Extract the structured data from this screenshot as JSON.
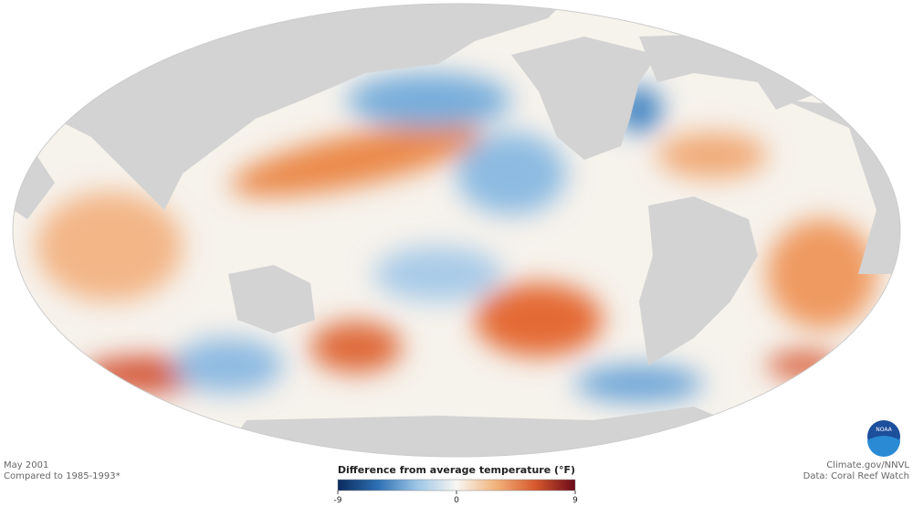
{
  "caption": {
    "date": "May 2001",
    "baseline": "Compared to 1985-1993*"
  },
  "credits": {
    "source": "Climate.gov/NNVL",
    "data": "Data: Coral Reef Watch",
    "logo": "NOAA"
  },
  "colorbar": {
    "title": "Difference from average temperature (°F)",
    "lim": [
      -9,
      9
    ],
    "ticks": [
      -9,
      0,
      9
    ],
    "colors": [
      "#0b2a5c",
      "#2c6fb3",
      "#9cc5e6",
      "#f8f6f2",
      "#f2b27a",
      "#d6582c",
      "#6b0a1a"
    ]
  }
}
